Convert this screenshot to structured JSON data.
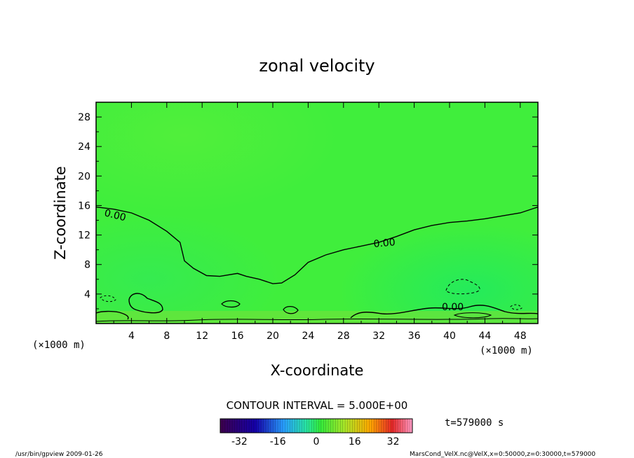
{
  "chart_data": {
    "type": "heatmap",
    "title": "zonal velocity",
    "xlabel": "X-coordinate",
    "ylabel": "Z-coordinate",
    "x_unit": "(×1000 m)",
    "y_unit": "(×1000 m)",
    "xlim": [
      0,
      50
    ],
    "ylim": [
      0,
      30
    ],
    "x_ticks": [
      4,
      8,
      12,
      16,
      20,
      24,
      28,
      32,
      36,
      40,
      44,
      48
    ],
    "y_ticks": [
      4,
      8,
      12,
      16,
      20,
      24,
      28
    ],
    "zero_contour": {
      "label": "0.00",
      "points": [
        [
          0,
          15.8
        ],
        [
          2,
          15.5
        ],
        [
          4,
          15.0
        ],
        [
          6,
          14.0
        ],
        [
          8,
          12.5
        ],
        [
          9.5,
          11.0
        ],
        [
          10,
          8.5
        ],
        [
          11,
          7.5
        ],
        [
          12.5,
          6.5
        ],
        [
          14,
          6.4
        ],
        [
          16,
          6.8
        ],
        [
          17,
          6.4
        ],
        [
          18.5,
          6.0
        ],
        [
          20,
          5.4
        ],
        [
          21,
          5.5
        ],
        [
          22.5,
          6.6
        ],
        [
          24,
          8.3
        ],
        [
          26,
          9.3
        ],
        [
          28,
          10.0
        ],
        [
          30,
          10.5
        ],
        [
          32,
          11.0
        ],
        [
          34,
          11.8
        ],
        [
          36,
          12.7
        ],
        [
          38,
          13.3
        ],
        [
          40,
          13.7
        ],
        [
          42,
          13.9
        ],
        [
          44,
          14.2
        ],
        [
          46,
          14.6
        ],
        [
          48,
          15.0
        ],
        [
          50,
          15.8
        ]
      ]
    },
    "low_contour_label": "0.00",
    "contour_interval": "CONTOUR INTERVAL = 5.000E+00",
    "colorbar_ticks": [
      -32,
      -16,
      0,
      16,
      32
    ],
    "colorbar_range": [
      -40,
      40
    ],
    "time_label": "t=579000 s",
    "grid": false
  },
  "footer": {
    "left": "/usr/bin/gpview  2009-01-26",
    "right": "MarsCond_VelX.nc@VelX,x=0:50000,z=0:30000,t=579000"
  }
}
